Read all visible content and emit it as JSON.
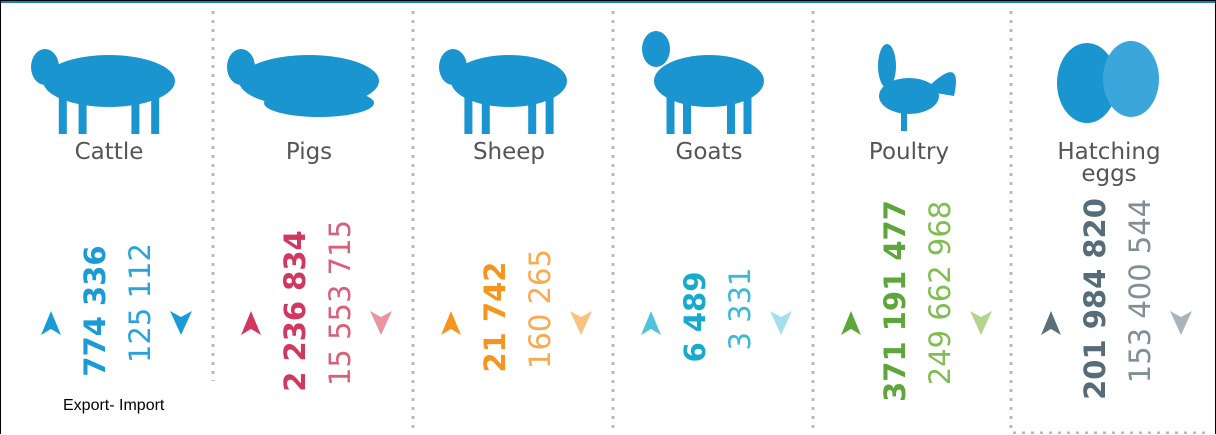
{
  "columns": [
    {
      "name": "Cattle",
      "export": "774 336",
      "import": "125 112"
    },
    {
      "name": "Pigs",
      "export": "2 236 834",
      "import": "15 553 715"
    },
    {
      "name": "Sheep",
      "export": "21 742",
      "import": "160 265"
    },
    {
      "name": "Goats",
      "export": "6 489",
      "import": "3 331"
    },
    {
      "name": "Poultry",
      "export": "371 191 477",
      "import": "249 662 968"
    },
    {
      "name": "Hatching eggs",
      "export": "201 984 820",
      "import": "153 400 544"
    }
  ],
  "note": "Export- Import"
}
